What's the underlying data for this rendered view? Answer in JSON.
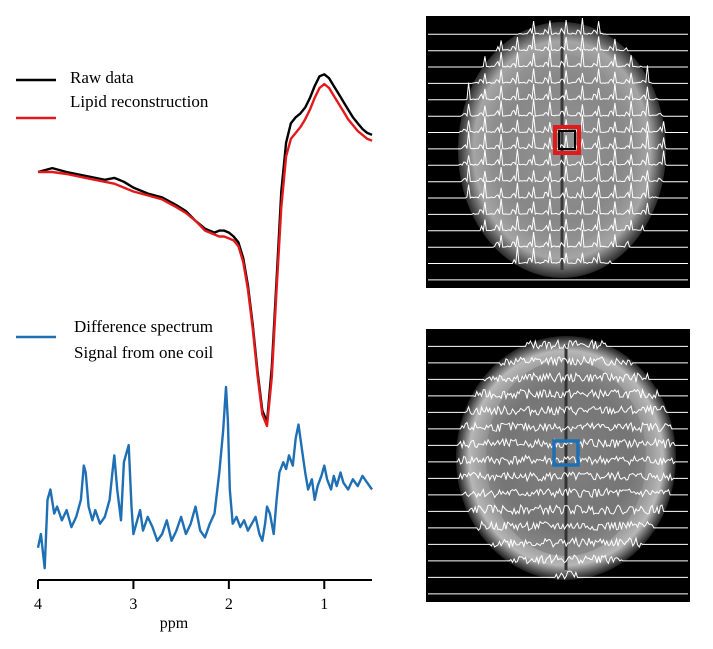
{
  "chart_data": [
    {
      "type": "line",
      "panel": "spectra",
      "xlabel": "ppm",
      "xlim": [
        4.0,
        0.5
      ],
      "x_reversed": true,
      "xticks": [
        "4",
        "3",
        "2",
        "1"
      ],
      "xtick_values": [
        4,
        3,
        2,
        1
      ],
      "legend_upper": [
        "Raw data",
        "Lipid reconstruction"
      ],
      "legend_lower": [
        "Difference spectrum",
        "Signal from one coil"
      ],
      "series": [
        {
          "name": "Raw data",
          "color": "#000000",
          "x": [
            4.0,
            3.85,
            3.7,
            3.5,
            3.3,
            3.2,
            3.1,
            3.0,
            2.85,
            2.7,
            2.55,
            2.45,
            2.35,
            2.25,
            2.15,
            2.1,
            2.05,
            2.0,
            1.95,
            1.9,
            1.85,
            1.8,
            1.75,
            1.7,
            1.65,
            1.6,
            1.55,
            1.5,
            1.45,
            1.4,
            1.35,
            1.3,
            1.25,
            1.2,
            1.15,
            1.1,
            1.05,
            1.0,
            0.95,
            0.9,
            0.85,
            0.8,
            0.75,
            0.7,
            0.65,
            0.6,
            0.55,
            0.5
          ],
          "y": [
            0.3,
            0.32,
            0.3,
            0.28,
            0.26,
            0.27,
            0.25,
            0.22,
            0.19,
            0.17,
            0.13,
            0.1,
            0.05,
            0.01,
            -0.01,
            0.0,
            0.0,
            -0.01,
            -0.03,
            -0.06,
            -0.14,
            -0.28,
            -0.48,
            -0.72,
            -0.92,
            -0.98,
            -0.7,
            -0.25,
            0.2,
            0.45,
            0.55,
            0.58,
            0.6,
            0.63,
            0.68,
            0.74,
            0.79,
            0.8,
            0.78,
            0.74,
            0.7,
            0.66,
            0.62,
            0.58,
            0.55,
            0.52,
            0.5,
            0.49
          ]
        },
        {
          "name": "Lipid reconstruction",
          "color": "#e31a1c",
          "x": [
            4.0,
            3.85,
            3.7,
            3.5,
            3.3,
            3.2,
            3.1,
            3.0,
            2.85,
            2.7,
            2.55,
            2.45,
            2.35,
            2.25,
            2.15,
            2.1,
            2.05,
            2.0,
            1.95,
            1.9,
            1.85,
            1.8,
            1.75,
            1.7,
            1.65,
            1.6,
            1.55,
            1.5,
            1.45,
            1.4,
            1.35,
            1.3,
            1.25,
            1.2,
            1.15,
            1.1,
            1.05,
            1.0,
            0.95,
            0.9,
            0.85,
            0.8,
            0.75,
            0.7,
            0.65,
            0.6,
            0.55,
            0.5
          ],
          "y": [
            0.3,
            0.3,
            0.29,
            0.27,
            0.25,
            0.24,
            0.22,
            0.2,
            0.18,
            0.16,
            0.12,
            0.09,
            0.05,
            0.0,
            -0.02,
            -0.03,
            -0.03,
            -0.04,
            -0.05,
            -0.08,
            -0.16,
            -0.3,
            -0.5,
            -0.74,
            -0.94,
            -1.0,
            -0.75,
            -0.3,
            0.12,
            0.38,
            0.47,
            0.5,
            0.53,
            0.57,
            0.62,
            0.68,
            0.73,
            0.75,
            0.73,
            0.69,
            0.65,
            0.61,
            0.57,
            0.54,
            0.51,
            0.49,
            0.47,
            0.46
          ]
        },
        {
          "name": "Difference spectrum",
          "color": "#1f6fb4",
          "x": [
            4.0,
            3.97,
            3.93,
            3.9,
            3.87,
            3.83,
            3.8,
            3.75,
            3.7,
            3.65,
            3.6,
            3.55,
            3.52,
            3.5,
            3.47,
            3.43,
            3.4,
            3.35,
            3.3,
            3.25,
            3.22,
            3.2,
            3.17,
            3.13,
            3.1,
            3.05,
            3.02,
            3.0,
            2.97,
            2.93,
            2.9,
            2.85,
            2.8,
            2.75,
            2.7,
            2.65,
            2.6,
            2.55,
            2.5,
            2.45,
            2.4,
            2.35,
            2.3,
            2.25,
            2.2,
            2.15,
            2.1,
            2.06,
            2.03,
            2.01,
            1.99,
            1.96,
            1.92,
            1.88,
            1.84,
            1.8,
            1.76,
            1.72,
            1.68,
            1.65,
            1.62,
            1.6,
            1.57,
            1.53,
            1.5,
            1.47,
            1.43,
            1.4,
            1.37,
            1.33,
            1.3,
            1.27,
            1.23,
            1.2,
            1.17,
            1.13,
            1.1,
            1.07,
            1.03,
            1.0,
            0.97,
            0.93,
            0.9,
            0.87,
            0.83,
            0.8,
            0.75,
            0.7,
            0.65,
            0.6,
            0.55,
            0.5
          ],
          "y": [
            0.08,
            0.12,
            0.02,
            0.22,
            0.25,
            0.18,
            0.2,
            0.16,
            0.19,
            0.14,
            0.17,
            0.22,
            0.32,
            0.3,
            0.2,
            0.16,
            0.19,
            0.15,
            0.17,
            0.22,
            0.3,
            0.35,
            0.25,
            0.16,
            0.33,
            0.38,
            0.2,
            0.12,
            0.15,
            0.19,
            0.13,
            0.17,
            0.14,
            0.1,
            0.12,
            0.16,
            0.1,
            0.13,
            0.17,
            0.12,
            0.15,
            0.2,
            0.13,
            0.11,
            0.15,
            0.18,
            0.3,
            0.42,
            0.55,
            0.45,
            0.25,
            0.15,
            0.17,
            0.14,
            0.16,
            0.13,
            0.15,
            0.17,
            0.12,
            0.1,
            0.15,
            0.2,
            0.18,
            0.12,
            0.22,
            0.3,
            0.33,
            0.31,
            0.35,
            0.32,
            0.4,
            0.44,
            0.36,
            0.3,
            0.25,
            0.28,
            0.22,
            0.26,
            0.29,
            0.32,
            0.28,
            0.25,
            0.29,
            0.26,
            0.3,
            0.27,
            0.25,
            0.28,
            0.26,
            0.29,
            0.27,
            0.25
          ]
        }
      ]
    },
    {
      "type": "image",
      "panel": "brain-spectral-map-top",
      "highlight_color": "#e31a1c"
    },
    {
      "type": "image",
      "panel": "brain-spectral-map-bottom",
      "highlight_color": "#1f6fb4"
    }
  ]
}
